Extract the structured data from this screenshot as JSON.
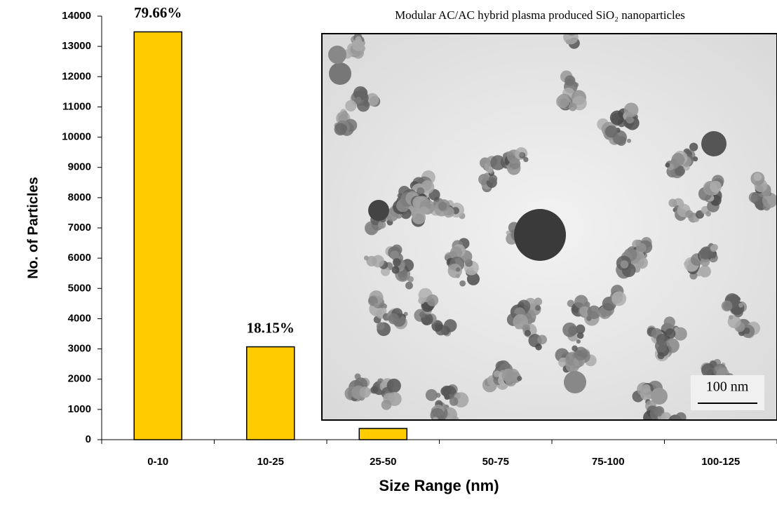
{
  "chart_data": {
    "type": "bar",
    "x_label": "Size Range (nm)",
    "y_label": "No. of Particles",
    "categories": [
      "0-10",
      "10-25",
      "25-50",
      "50-75",
      "75-100",
      "100-125"
    ],
    "values": [
      13480,
      3070,
      370,
      0,
      0,
      0
    ],
    "color": "#ffcc00",
    "ylim": [
      0,
      14000
    ],
    "yticks": [
      0,
      1000,
      2000,
      3000,
      4000,
      5000,
      6000,
      7000,
      8000,
      9000,
      10000,
      11000,
      12000,
      13000,
      14000
    ],
    "annotations": [
      {
        "text": "79.66%",
        "category": "0-10"
      },
      {
        "text": "18.15%",
        "category": "10-25"
      }
    ],
    "inset_title": "Modular AC/AC hybrid plasma produced SiO₂ nanoparticles",
    "scale_bar_label": "100 nm"
  }
}
